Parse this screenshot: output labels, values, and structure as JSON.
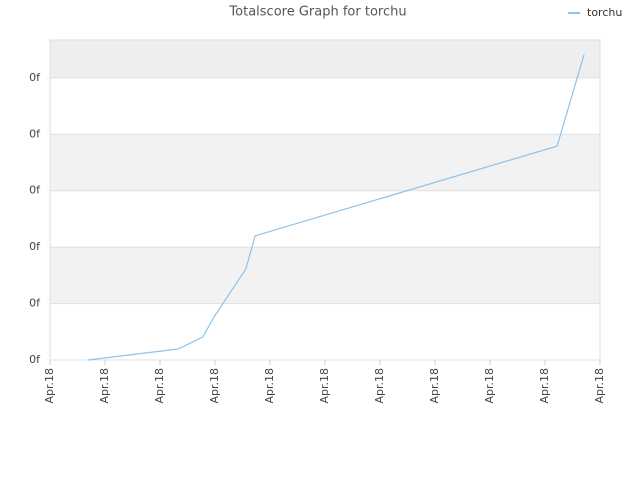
{
  "chart_data": {
    "type": "line",
    "title": "Totalscore Graph for torchu",
    "x": [
      0.69,
      2.33,
      2.78,
      2.98,
      3.56,
      3.73,
      9.22,
      9.71
    ],
    "series": [
      {
        "name": "torchu",
        "color": "#8ec3ec",
        "values": [
          0,
          0.195,
          0.41,
          0.76,
          1.61,
          2.2,
          3.79,
          5.41
        ]
      }
    ],
    "xlim": [
      0,
      10
    ],
    "xticks": [
      {
        "value": 0,
        "label": "Apr.18"
      },
      {
        "value": 1,
        "label": "Apr.18"
      },
      {
        "value": 2,
        "label": "Apr.18"
      },
      {
        "value": 3,
        "label": "Apr.18"
      },
      {
        "value": 4,
        "label": "Apr.18"
      },
      {
        "value": 5,
        "label": "Apr.18"
      },
      {
        "value": 6,
        "label": "Apr.18"
      },
      {
        "value": 7,
        "label": "Apr.18"
      },
      {
        "value": 8,
        "label": "Apr.18"
      },
      {
        "value": 9,
        "label": "Apr.18"
      },
      {
        "value": 10,
        "label": "Apr.18"
      }
    ],
    "ylim": [
      0,
      5.67
    ],
    "yticks": [
      {
        "value": 0,
        "label": "0f"
      },
      {
        "value": 1,
        "label": "0f"
      },
      {
        "value": 2,
        "label": "0f"
      },
      {
        "value": 3,
        "label": "0f"
      },
      {
        "value": 4,
        "label": "0f"
      },
      {
        "value": 5,
        "label": "0f"
      }
    ],
    "grid": true,
    "legend": "top-right"
  }
}
